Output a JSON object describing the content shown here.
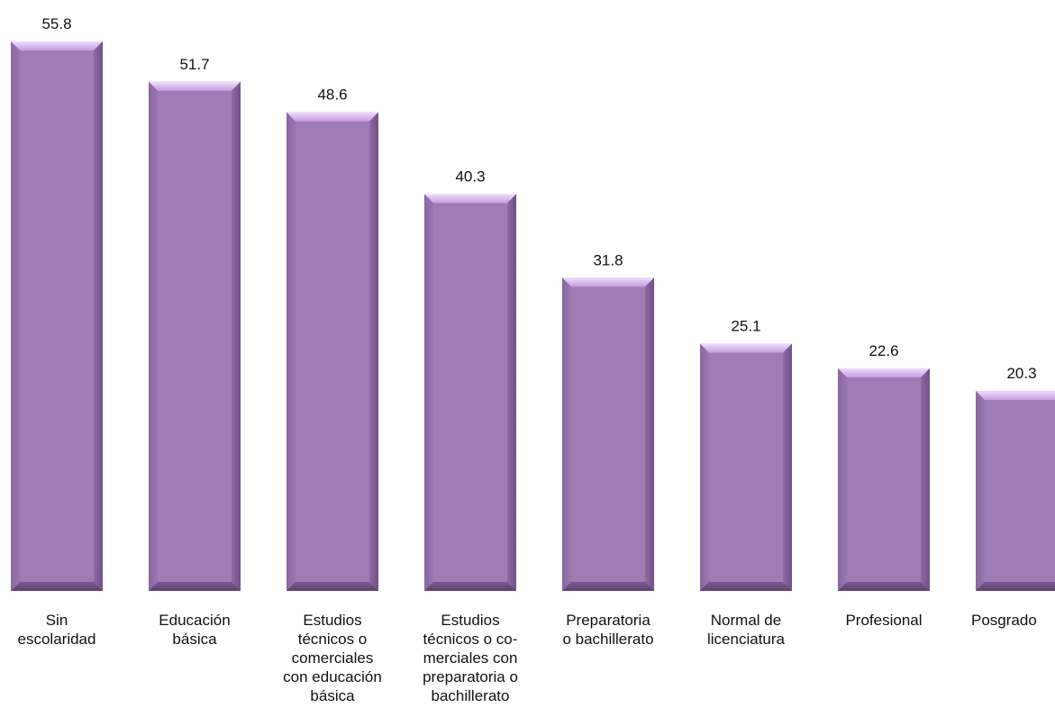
{
  "chart_data": {
    "type": "bar",
    "categories": [
      "Sin\nescolaridad",
      "Educación\nbásica",
      "Estudios\ntécnicos o\ncomerciales\ncon educación\nbásica",
      "Estudios\ntécnicos o co-\nmerciales con\npreparatoria o\nbachillerato",
      "Preparatoria\no bachillerato",
      "Normal de\nlicenciatura",
      "Profesional",
      "Posgrado"
    ],
    "values": [
      55.8,
      51.7,
      48.6,
      40.3,
      31.8,
      25.1,
      22.6,
      20.3
    ],
    "value_labels": [
      "55.8",
      "51.7",
      "48.6",
      "40.3",
      "31.8",
      "25.1",
      "22.6",
      "20.3"
    ],
    "title": "",
    "xlabel": "",
    "ylabel": "",
    "ylim": [
      0,
      55.8
    ],
    "grid": false,
    "legend": "none",
    "colors": {
      "bar_fill": "#a07cb6",
      "bar_bevel_light": "#d9b8ef",
      "bar_bevel_dark": "#6e4e82",
      "label": "#111111"
    }
  }
}
